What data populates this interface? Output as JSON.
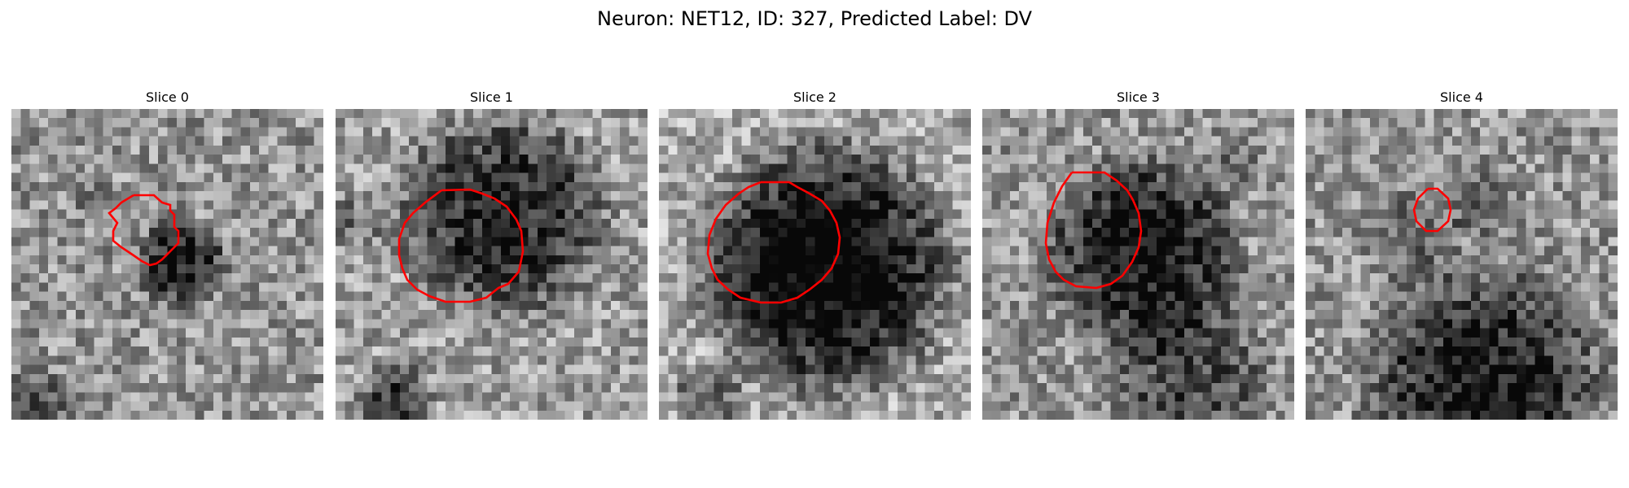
{
  "figure": {
    "title": "Neuron: NET12, ID: 327, Predicted Label: DV"
  },
  "outline_color": "#ff0000",
  "panels": [
    {
      "title": "Slice 0",
      "contour": [
        [
          150,
          106
        ],
        [
          175,
          106
        ],
        [
          185,
          115
        ],
        [
          195,
          118
        ],
        [
          195,
          125
        ],
        [
          200,
          130
        ],
        [
          200,
          145
        ],
        [
          205,
          150
        ],
        [
          205,
          165
        ],
        [
          195,
          175
        ],
        [
          185,
          185
        ],
        [
          178,
          190
        ],
        [
          170,
          192
        ],
        [
          160,
          187
        ],
        [
          150,
          180
        ],
        [
          135,
          170
        ],
        [
          125,
          162
        ],
        [
          125,
          150
        ],
        [
          130,
          140
        ],
        [
          120,
          128
        ],
        [
          128,
          122
        ],
        [
          135,
          115
        ],
        [
          150,
          106
        ]
      ]
    },
    {
      "title": "Slice 1",
      "contour": [
        [
          130,
          100
        ],
        [
          165,
          99
        ],
        [
          180,
          104
        ],
        [
          195,
          110
        ],
        [
          210,
          120
        ],
        [
          222,
          136
        ],
        [
          228,
          150
        ],
        [
          230,
          175
        ],
        [
          225,
          200
        ],
        [
          212,
          215
        ],
        [
          200,
          220
        ],
        [
          185,
          232
        ],
        [
          165,
          237
        ],
        [
          135,
          237
        ],
        [
          115,
          230
        ],
        [
          100,
          222
        ],
        [
          88,
          210
        ],
        [
          82,
          196
        ],
        [
          78,
          180
        ],
        [
          78,
          160
        ],
        [
          85,
          140
        ],
        [
          95,
          128
        ],
        [
          110,
          115
        ],
        [
          130,
          100
        ]
      ]
    },
    {
      "title": "Slice 2",
      "contour": [
        [
          125,
          90
        ],
        [
          160,
          90
        ],
        [
          170,
          96
        ],
        [
          185,
          104
        ],
        [
          200,
          113
        ],
        [
          210,
          125
        ],
        [
          218,
          140
        ],
        [
          222,
          158
        ],
        [
          220,
          178
        ],
        [
          212,
          196
        ],
        [
          200,
          210
        ],
        [
          185,
          222
        ],
        [
          170,
          232
        ],
        [
          150,
          238
        ],
        [
          125,
          238
        ],
        [
          100,
          232
        ],
        [
          85,
          222
        ],
        [
          72,
          210
        ],
        [
          65,
          196
        ],
        [
          60,
          178
        ],
        [
          62,
          155
        ],
        [
          70,
          135
        ],
        [
          82,
          118
        ],
        [
          98,
          104
        ],
        [
          110,
          96
        ],
        [
          125,
          90
        ]
      ]
    },
    {
      "title": "Slice 3",
      "contour": [
        [
          110,
          78
        ],
        [
          150,
          78
        ],
        [
          165,
          88
        ],
        [
          178,
          100
        ],
        [
          185,
          112
        ],
        [
          192,
          128
        ],
        [
          195,
          150
        ],
        [
          192,
          170
        ],
        [
          184,
          188
        ],
        [
          172,
          205
        ],
        [
          158,
          215
        ],
        [
          140,
          220
        ],
        [
          115,
          218
        ],
        [
          100,
          210
        ],
        [
          90,
          200
        ],
        [
          82,
          185
        ],
        [
          78,
          165
        ],
        [
          80,
          140
        ],
        [
          88,
          115
        ],
        [
          98,
          95
        ],
        [
          110,
          78
        ]
      ]
    },
    {
      "title": "Slice 4",
      "contour": [
        [
          150,
          98
        ],
        [
          162,
          98
        ],
        [
          175,
          110
        ],
        [
          178,
          124
        ],
        [
          175,
          138
        ],
        [
          162,
          150
        ],
        [
          148,
          150
        ],
        [
          136,
          138
        ],
        [
          133,
          124
        ],
        [
          138,
          110
        ],
        [
          150,
          98
        ]
      ]
    }
  ]
}
